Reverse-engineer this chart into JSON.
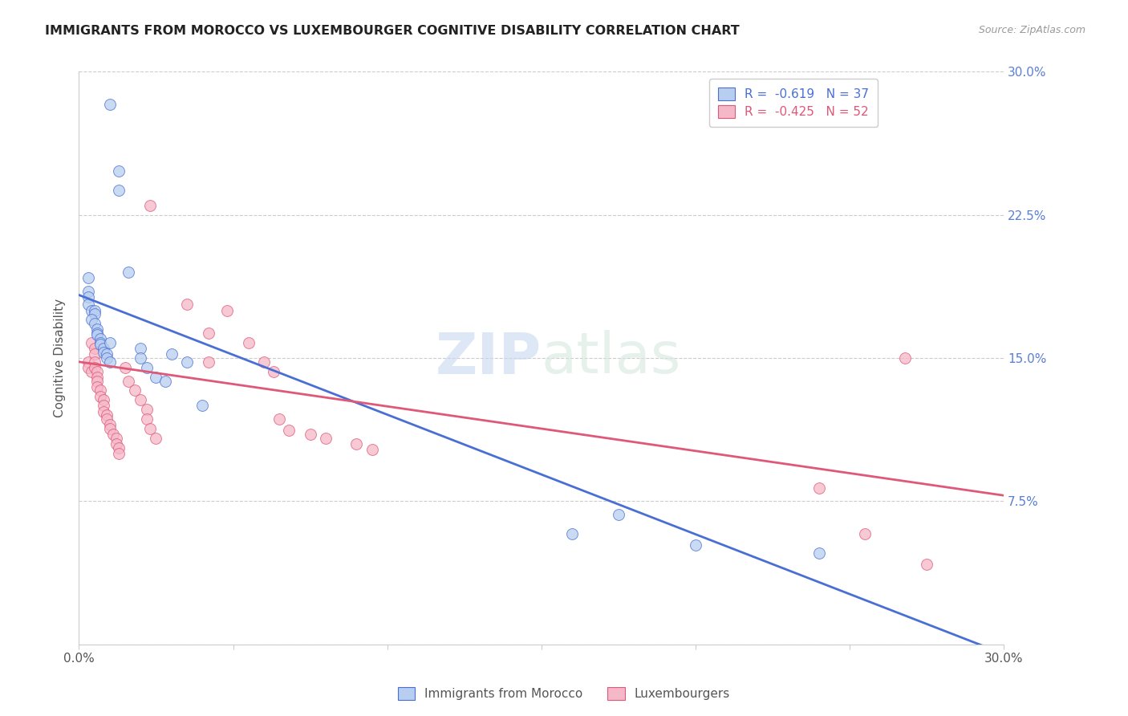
{
  "title": "IMMIGRANTS FROM MOROCCO VS LUXEMBOURGER COGNITIVE DISABILITY CORRELATION CHART",
  "source": "Source: ZipAtlas.com",
  "ylabel": "Cognitive Disability",
  "xlim": [
    0.0,
    0.3
  ],
  "ylim": [
    0.0,
    0.3
  ],
  "blue_color": "#b8cef0",
  "pink_color": "#f5b8c8",
  "blue_line_color": "#4a6fd4",
  "pink_line_color": "#e05878",
  "blue_scatter": [
    [
      0.01,
      0.283
    ],
    [
      0.013,
      0.248
    ],
    [
      0.013,
      0.238
    ],
    [
      0.003,
      0.192
    ],
    [
      0.003,
      0.185
    ],
    [
      0.003,
      0.182
    ],
    [
      0.003,
      0.178
    ],
    [
      0.004,
      0.175
    ],
    [
      0.005,
      0.175
    ],
    [
      0.005,
      0.173
    ],
    [
      0.004,
      0.17
    ],
    [
      0.005,
      0.168
    ],
    [
      0.006,
      0.165
    ],
    [
      0.006,
      0.163
    ],
    [
      0.006,
      0.162
    ],
    [
      0.007,
      0.16
    ],
    [
      0.007,
      0.158
    ],
    [
      0.007,
      0.157
    ],
    [
      0.008,
      0.155
    ],
    [
      0.008,
      0.153
    ],
    [
      0.009,
      0.152
    ],
    [
      0.009,
      0.15
    ],
    [
      0.01,
      0.148
    ],
    [
      0.01,
      0.158
    ],
    [
      0.016,
      0.195
    ],
    [
      0.02,
      0.155
    ],
    [
      0.02,
      0.15
    ],
    [
      0.022,
      0.145
    ],
    [
      0.025,
      0.14
    ],
    [
      0.028,
      0.138
    ],
    [
      0.03,
      0.152
    ],
    [
      0.035,
      0.148
    ],
    [
      0.04,
      0.125
    ],
    [
      0.16,
      0.058
    ],
    [
      0.175,
      0.068
    ],
    [
      0.2,
      0.052
    ],
    [
      0.24,
      0.048
    ]
  ],
  "pink_scatter": [
    [
      0.003,
      0.148
    ],
    [
      0.003,
      0.145
    ],
    [
      0.004,
      0.143
    ],
    [
      0.004,
      0.158
    ],
    [
      0.005,
      0.155
    ],
    [
      0.005,
      0.152
    ],
    [
      0.005,
      0.148
    ],
    [
      0.005,
      0.145
    ],
    [
      0.006,
      0.143
    ],
    [
      0.006,
      0.14
    ],
    [
      0.006,
      0.138
    ],
    [
      0.006,
      0.135
    ],
    [
      0.007,
      0.133
    ],
    [
      0.007,
      0.13
    ],
    [
      0.008,
      0.128
    ],
    [
      0.008,
      0.125
    ],
    [
      0.008,
      0.122
    ],
    [
      0.009,
      0.12
    ],
    [
      0.009,
      0.118
    ],
    [
      0.01,
      0.115
    ],
    [
      0.01,
      0.113
    ],
    [
      0.011,
      0.11
    ],
    [
      0.012,
      0.108
    ],
    [
      0.012,
      0.105
    ],
    [
      0.013,
      0.103
    ],
    [
      0.013,
      0.1
    ],
    [
      0.015,
      0.145
    ],
    [
      0.016,
      0.138
    ],
    [
      0.018,
      0.133
    ],
    [
      0.02,
      0.128
    ],
    [
      0.022,
      0.123
    ],
    [
      0.022,
      0.118
    ],
    [
      0.023,
      0.113
    ],
    [
      0.025,
      0.108
    ],
    [
      0.023,
      0.23
    ],
    [
      0.035,
      0.178
    ],
    [
      0.042,
      0.163
    ],
    [
      0.042,
      0.148
    ],
    [
      0.048,
      0.175
    ],
    [
      0.055,
      0.158
    ],
    [
      0.06,
      0.148
    ],
    [
      0.063,
      0.143
    ],
    [
      0.065,
      0.118
    ],
    [
      0.068,
      0.112
    ],
    [
      0.075,
      0.11
    ],
    [
      0.08,
      0.108
    ],
    [
      0.09,
      0.105
    ],
    [
      0.095,
      0.102
    ],
    [
      0.24,
      0.082
    ],
    [
      0.255,
      0.058
    ],
    [
      0.275,
      0.042
    ],
    [
      0.268,
      0.15
    ]
  ],
  "blue_line_x": [
    0.0,
    0.3
  ],
  "blue_line_y": [
    0.183,
    -0.005
  ],
  "pink_line_x": [
    0.0,
    0.3
  ],
  "pink_line_y": [
    0.148,
    0.078
  ],
  "watermark_zip": "ZIP",
  "watermark_atlas": "atlas",
  "background_color": "#ffffff",
  "grid_color": "#cccccc",
  "right_tick_color": "#5b7fd4",
  "legend_r1_label": "R =  -0.619   N = 37",
  "legend_r2_label": "R =  -0.425   N = 52",
  "bottom_legend_1": "Immigrants from Morocco",
  "bottom_legend_2": "Luxembourgers"
}
